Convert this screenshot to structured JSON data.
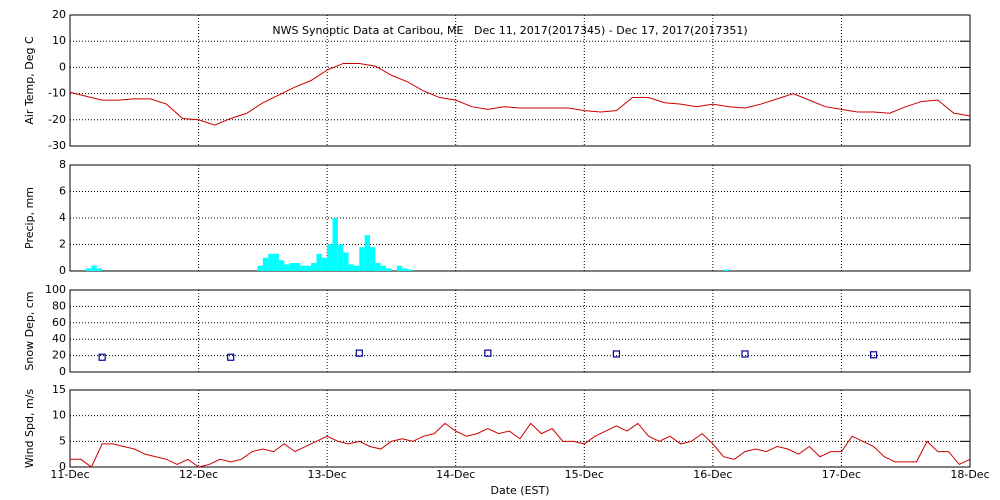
{
  "chart_data": [
    {
      "type": "line",
      "title": "NWS Synoptic Data at Caribou, ME   Dec 11, 2017(2017345) - Dec 17, 2017(2017351)",
      "ylabel": "Air Temp, Deg C",
      "color": "#cc0000",
      "x": [
        0,
        3,
        6,
        9,
        12,
        15,
        18,
        21,
        24,
        27,
        30,
        33,
        36,
        39,
        42,
        45,
        48,
        51,
        54,
        57,
        60,
        63,
        66,
        69,
        72,
        75,
        78,
        81,
        84,
        87,
        90,
        93,
        96,
        99,
        102,
        105,
        108,
        111,
        114,
        117,
        120,
        123,
        126,
        129,
        132,
        135,
        138,
        141,
        144,
        147,
        150,
        153,
        156,
        159,
        162,
        165,
        168
      ],
      "values": [
        -9.5,
        -11,
        -12.5,
        -12.5,
        -12,
        -12,
        -14,
        -19.5,
        -20,
        -22,
        -19.5,
        -17.5,
        -13.5,
        -10.5,
        -7.5,
        -5,
        -1,
        1.5,
        1.5,
        0.5,
        -3,
        -5.5,
        -9,
        -11.5,
        -12.5,
        -15,
        -16,
        -15,
        -15.5,
        -15.5,
        -15.5,
        -15.5,
        -16.5,
        -17,
        -16.5,
        -11.5,
        -11.5,
        -13.5,
        -14,
        -15,
        -14,
        -15,
        -15.5,
        -14,
        -12,
        -10,
        -12.5,
        -15,
        -16,
        -17,
        -17,
        -17.5,
        -15,
        -13,
        -12.5,
        -17.5,
        -18.5
      ],
      "ylim": [
        -30,
        20
      ],
      "yticks": [
        -30,
        -20,
        -10,
        0,
        10,
        20
      ],
      "grid": true
    },
    {
      "type": "bar",
      "ylabel": "Precip, mm",
      "color": "#00ffff",
      "x": [
        3,
        4,
        5,
        35,
        36,
        37,
        38,
        39,
        40,
        41,
        42,
        43,
        44,
        45,
        46,
        47,
        48,
        49,
        50,
        51,
        52,
        53,
        54,
        55,
        56,
        57,
        58,
        59,
        61,
        62,
        63,
        122
      ],
      "values": [
        0.2,
        0.4,
        0.2,
        0.4,
        1.0,
        1.3,
        1.3,
        0.8,
        0.5,
        0.6,
        0.6,
        0.4,
        0.4,
        0.6,
        1.3,
        1.0,
        2.0,
        4.0,
        2.0,
        1.4,
        0.5,
        0.4,
        1.8,
        2.7,
        1.8,
        0.6,
        0.4,
        0.2,
        0.4,
        0.2,
        0.1,
        0.1
      ],
      "ylim": [
        0,
        8
      ],
      "yticks": [
        0,
        2,
        4,
        6,
        8
      ],
      "grid": true
    },
    {
      "type": "scatter",
      "ylabel": "Snow Dep, cm",
      "color": "#000099",
      "x": [
        6,
        30,
        54,
        78,
        102,
        126,
        150
      ],
      "values": [
        18,
        18,
        23,
        23,
        22,
        22,
        21
      ],
      "ylim": [
        0,
        100
      ],
      "yticks": [
        0,
        20,
        40,
        60,
        80,
        100
      ],
      "grid": true
    },
    {
      "type": "line",
      "ylabel": "Wind Spd, m/s",
      "xlabel": "Date (EST)",
      "color": "#cc0000",
      "x": [
        0,
        2,
        4,
        6,
        8,
        10,
        12,
        14,
        16,
        18,
        20,
        22,
        24,
        26,
        28,
        30,
        32,
        34,
        36,
        38,
        40,
        42,
        44,
        46,
        48,
        50,
        52,
        54,
        56,
        58,
        60,
        62,
        64,
        66,
        68,
        70,
        72,
        74,
        76,
        78,
        80,
        82,
        84,
        86,
        88,
        90,
        92,
        94,
        96,
        98,
        100,
        102,
        104,
        106,
        108,
        110,
        112,
        114,
        116,
        118,
        120,
        122,
        124,
        126,
        128,
        130,
        132,
        134,
        136,
        138,
        140,
        142,
        144,
        146,
        148,
        150,
        152,
        154,
        156,
        158,
        160,
        162,
        164,
        166,
        168
      ],
      "values": [
        1.5,
        1.5,
        0,
        4.5,
        4.5,
        4,
        3.5,
        2.5,
        2,
        1.5,
        0.5,
        1.5,
        0,
        0.5,
        1.5,
        1,
        1.5,
        3,
        3.5,
        3,
        4.5,
        3,
        4,
        5,
        6,
        5,
        4.5,
        5,
        4,
        3.5,
        5,
        5.5,
        5,
        6,
        6.5,
        8.5,
        7,
        6,
        6.5,
        7.5,
        6.5,
        7,
        5.5,
        8.5,
        6.5,
        7.5,
        5,
        5,
        4.5,
        6,
        7,
        8,
        7,
        8.5,
        6,
        5,
        6,
        4.5,
        5,
        6.5,
        4.5,
        2,
        1.5,
        3,
        3.5,
        3,
        4,
        3.5,
        2.5,
        4,
        2,
        3,
        3,
        6,
        5,
        4,
        2,
        1,
        1,
        1,
        5,
        3,
        3,
        0.5,
        1.5
      ],
      "ylim": [
        0,
        15
      ],
      "yticks": [
        0,
        5,
        10,
        15
      ],
      "grid": true,
      "xlim": [
        0,
        168
      ],
      "xticks": [
        {
          "value": 0,
          "label": "11-Dec"
        },
        {
          "value": 24,
          "label": "12-Dec"
        },
        {
          "value": 48,
          "label": "13-Dec"
        },
        {
          "value": 72,
          "label": "14-Dec"
        },
        {
          "value": 96,
          "label": "15-Dec"
        },
        {
          "value": 120,
          "label": "16-Dec"
        },
        {
          "value": 144,
          "label": "17-Dec"
        },
        {
          "value": 168,
          "label": "18-Dec"
        }
      ]
    }
  ]
}
